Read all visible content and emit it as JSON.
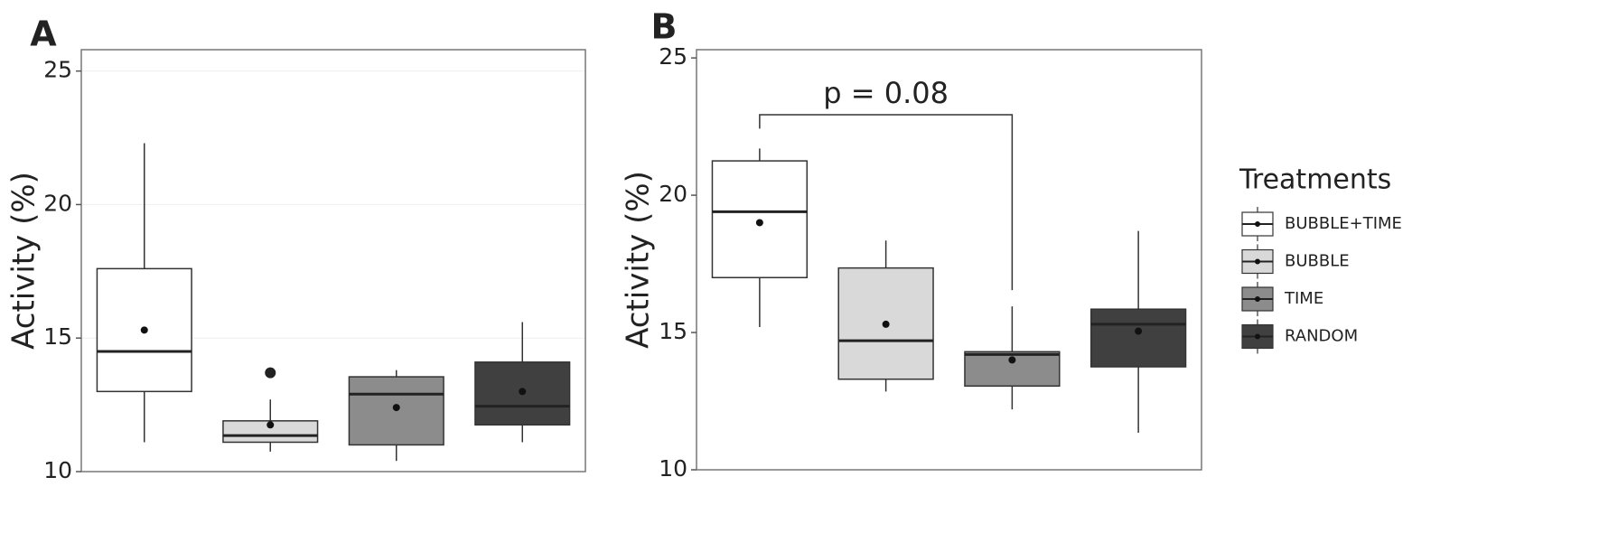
{
  "chart_data": [
    {
      "type": "box",
      "panel": "A",
      "ylabel": "Activity (%)",
      "ylim": [
        10,
        25.8
      ],
      "yticks": [
        10,
        15,
        20,
        25
      ],
      "grid": true,
      "series": [
        {
          "color": "#ffffff",
          "low": 11.1,
          "q1": 13.0,
          "median": 14.5,
          "q3": 17.6,
          "high": 22.3,
          "mean": 15.3,
          "outliers": []
        },
        {
          "color": "#d9d9d9",
          "low": 10.75,
          "q1": 11.1,
          "median": 11.35,
          "q3": 11.9,
          "high": 12.7,
          "mean": 11.75,
          "outliers": [
            13.7
          ]
        },
        {
          "color": "#8c8c8c",
          "low": 10.4,
          "q1": 11.0,
          "median": 12.9,
          "q3": 13.55,
          "high": 13.8,
          "mean": 12.4,
          "outliers": []
        },
        {
          "color": "#404040",
          "low": 11.1,
          "q1": 11.75,
          "median": 12.45,
          "q3": 14.1,
          "high": 15.6,
          "mean": 13.0,
          "outliers": []
        }
      ]
    },
    {
      "type": "box",
      "panel": "B",
      "ylabel": "Activity (%)",
      "ylim": [
        10,
        25.3
      ],
      "yticks": [
        10,
        15,
        20,
        25
      ],
      "grid": false,
      "annotation": {
        "text": "p = 0.08",
        "from": 0,
        "to": 2
      },
      "legend": "right",
      "legend_title": "Treatments",
      "series": [
        {
          "name": "BUBBLE+TIME",
          "color": "#ffffff",
          "low": 15.2,
          "q1": 17.0,
          "median": 19.4,
          "q3": 21.25,
          "high": 21.7,
          "mean": 19.0,
          "outliers": []
        },
        {
          "name": "BUBBLE",
          "color": "#d9d9d9",
          "low": 12.85,
          "q1": 13.3,
          "median": 14.7,
          "q3": 17.35,
          "high": 18.35,
          "mean": 15.3,
          "outliers": []
        },
        {
          "name": "TIME",
          "color": "#8c8c8c",
          "low": 12.2,
          "q1": 13.05,
          "median": 14.2,
          "q3": 14.3,
          "high": 15.95,
          "mean": 14.0,
          "outliers": []
        },
        {
          "name": "RANDOM",
          "color": "#404040",
          "low": 11.35,
          "q1": 13.75,
          "median": 15.3,
          "q3": 15.85,
          "high": 18.7,
          "mean": 15.05,
          "outliers": []
        }
      ]
    }
  ]
}
